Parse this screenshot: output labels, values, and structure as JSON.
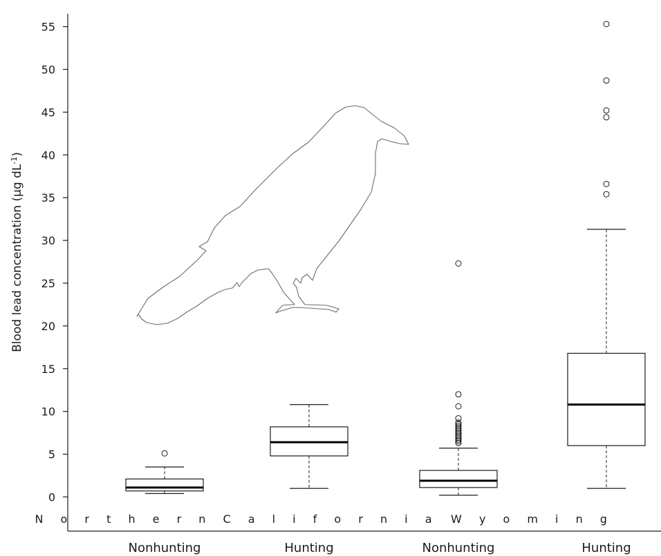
{
  "chart_data": {
    "type": "box",
    "ylabel": "Blood lead concentration (µg dL",
    "ylabel_superscript": "-1",
    "ylabel_close": ")",
    "yticks": [
      0,
      5,
      10,
      15,
      20,
      25,
      30,
      35,
      40,
      45,
      50,
      55
    ],
    "ylim": [
      -4,
      56.5
    ],
    "categories": [
      "Nonhunting",
      "Hunting",
      "Nonhunting",
      "Hunting"
    ],
    "groups": [
      {
        "label": "N o r t h e r n   C a l i f o r n i a",
        "categories": [
          0,
          1
        ]
      },
      {
        "label": "W y o m i n g",
        "categories": [
          2,
          3
        ]
      }
    ],
    "boxes": [
      {
        "min": 0.4,
        "q1": 0.7,
        "median": 1.1,
        "q3": 2.1,
        "max": 3.5,
        "outliers": [
          5.1
        ]
      },
      {
        "min": 1.0,
        "q1": 4.8,
        "median": 6.4,
        "q3": 8.2,
        "max": 10.8,
        "outliers": []
      },
      {
        "min": 0.2,
        "q1": 1.1,
        "median": 1.9,
        "q3": 3.1,
        "max": 5.7,
        "outliers": [
          6.3,
          6.5,
          6.7,
          6.9,
          7.1,
          7.3,
          7.5,
          7.7,
          7.9,
          8.1,
          8.3,
          8.5,
          8.7,
          9.2,
          10.6,
          12.0,
          27.3
        ]
      },
      {
        "min": 1.0,
        "q1": 6.0,
        "median": 10.8,
        "q3": 16.8,
        "max": 31.3,
        "outliers": [
          35.4,
          36.6,
          44.4,
          45.2,
          48.7,
          55.3
        ]
      }
    ],
    "grid": false,
    "illustration": "raven-silhouette"
  }
}
